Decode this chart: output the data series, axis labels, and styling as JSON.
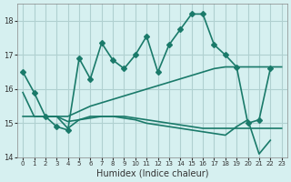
{
  "xlabel": "Humidex (Indice chaleur)",
  "bg_color": "#d6f0f0",
  "grid_color": "#b0d0d0",
  "line_color": "#1a7a6a",
  "xlim": [
    0,
    23
  ],
  "ylim": [
    14,
    18.5
  ],
  "yticks": [
    14,
    15,
    16,
    17,
    18
  ],
  "xticks": [
    0,
    1,
    2,
    3,
    4,
    5,
    6,
    7,
    8,
    9,
    10,
    11,
    12,
    13,
    14,
    15,
    16,
    17,
    18,
    19,
    20,
    21,
    22,
    23
  ],
  "series": [
    {
      "x": [
        0,
        1,
        2,
        3,
        4,
        5,
        6,
        7,
        8,
        9,
        10,
        11,
        12,
        13,
        14,
        15,
        16,
        17,
        18,
        19,
        20,
        21,
        22,
        23
      ],
      "y": [
        16.5,
        15.9,
        15.2,
        14.9,
        14.8,
        16.9,
        16.3,
        17.35,
        16.85,
        16.6,
        17.0,
        17.55,
        16.5,
        17.3,
        17.75,
        18.2,
        18.2,
        17.3,
        17.0,
        16.65,
        15.0,
        15.1,
        16.6,
        null
      ],
      "marker": "D",
      "markersize": 3,
      "linewidth": 1.2
    },
    {
      "x": [
        0,
        1,
        2,
        3,
        4,
        5,
        6,
        7,
        8,
        9,
        10,
        11,
        12,
        13,
        14,
        15,
        16,
        17,
        18,
        19,
        20,
        21,
        22,
        23
      ],
      "y": [
        15.9,
        15.2,
        15.2,
        15.2,
        15.2,
        15.35,
        15.5,
        15.6,
        15.7,
        15.8,
        15.9,
        16.0,
        16.1,
        16.2,
        16.3,
        16.4,
        16.5,
        16.6,
        16.65,
        16.65,
        16.65,
        16.65,
        16.65,
        16.65
      ],
      "marker": null,
      "markersize": 0,
      "linewidth": 1.2
    },
    {
      "x": [
        0,
        1,
        2,
        3,
        4,
        5,
        6,
        7,
        8,
        9,
        10,
        11,
        12,
        13,
        14,
        15,
        16,
        17,
        18,
        19,
        20,
        21,
        22,
        23
      ],
      "y": [
        15.2,
        15.2,
        15.2,
        15.2,
        15.05,
        15.1,
        15.15,
        15.2,
        15.2,
        15.2,
        15.15,
        15.1,
        15.05,
        15.0,
        14.95,
        14.9,
        14.85,
        14.85,
        14.85,
        14.85,
        14.85,
        14.85,
        14.85,
        14.85
      ],
      "marker": null,
      "markersize": 0,
      "linewidth": 1.2
    },
    {
      "x": [
        2,
        3,
        4,
        5,
        6,
        7,
        8,
        9,
        10,
        11,
        12,
        13,
        14,
        15,
        16,
        17,
        18,
        19,
        20,
        21,
        22,
        23
      ],
      "y": [
        15.2,
        15.2,
        14.85,
        15.1,
        15.2,
        15.2,
        15.2,
        15.15,
        15.1,
        15.0,
        14.95,
        14.9,
        14.85,
        14.8,
        14.75,
        14.7,
        14.65,
        14.9,
        15.1,
        14.1,
        14.5,
        null
      ],
      "marker": null,
      "markersize": 0,
      "linewidth": 1.2
    }
  ]
}
